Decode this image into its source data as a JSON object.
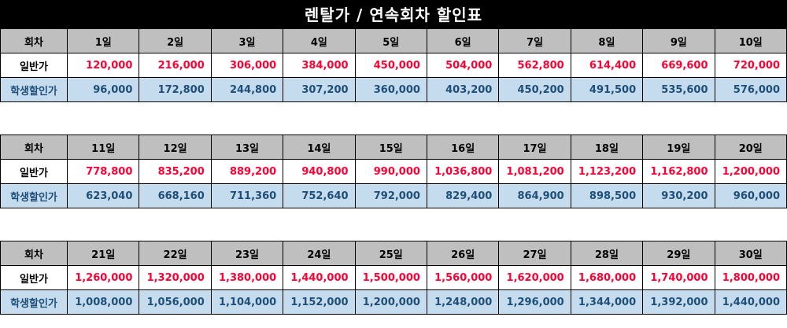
{
  "title": "렌탈가 / 연속회차 할인표",
  "row_labels": {
    "round": "회차",
    "normal": "일반가",
    "student": "학생할인가"
  },
  "colors": {
    "header_bg": "#bfbfbf",
    "normal_price": "#ff0033",
    "student_bg": "#c5dcee",
    "student_text": "#1f4e79",
    "title_bg": "#000000"
  },
  "blocks": [
    {
      "days": [
        "1일",
        "2일",
        "3일",
        "4일",
        "5일",
        "6일",
        "7일",
        "8일",
        "9일",
        "10일"
      ],
      "normal": [
        "120,000",
        "216,000",
        "306,000",
        "384,000",
        "450,000",
        "504,000",
        "562,800",
        "614,400",
        "669,600",
        "720,000"
      ],
      "student": [
        "96,000",
        "172,800",
        "244,800",
        "307,200",
        "360,000",
        "403,200",
        "450,200",
        "491,500",
        "535,600",
        "576,000"
      ]
    },
    {
      "days": [
        "11일",
        "12일",
        "13일",
        "14일",
        "15일",
        "16일",
        "17일",
        "18일",
        "19일",
        "20일"
      ],
      "normal": [
        "778,800",
        "835,200",
        "889,200",
        "940,800",
        "990,000",
        "1,036,800",
        "1,081,200",
        "1,123,200",
        "1,162,800",
        "1,200,000"
      ],
      "student": [
        "623,040",
        "668,160",
        "711,360",
        "752,640",
        "792,000",
        "829,400",
        "864,900",
        "898,500",
        "930,200",
        "960,000"
      ]
    },
    {
      "days": [
        "21일",
        "22일",
        "23일",
        "24일",
        "25일",
        "26일",
        "27일",
        "28일",
        "29일",
        "30일"
      ],
      "normal": [
        "1,260,000",
        "1,320,000",
        "1,380,000",
        "1,440,000",
        "1,500,000",
        "1,560,000",
        "1,620,000",
        "1,680,000",
        "1,740,000",
        "1,800,000"
      ],
      "student": [
        "1,008,000",
        "1,056,000",
        "1,104,000",
        "1,152,000",
        "1,200,000",
        "1,248,000",
        "1,296,000",
        "1,344,000",
        "1,392,000",
        "1,440,000"
      ]
    }
  ]
}
